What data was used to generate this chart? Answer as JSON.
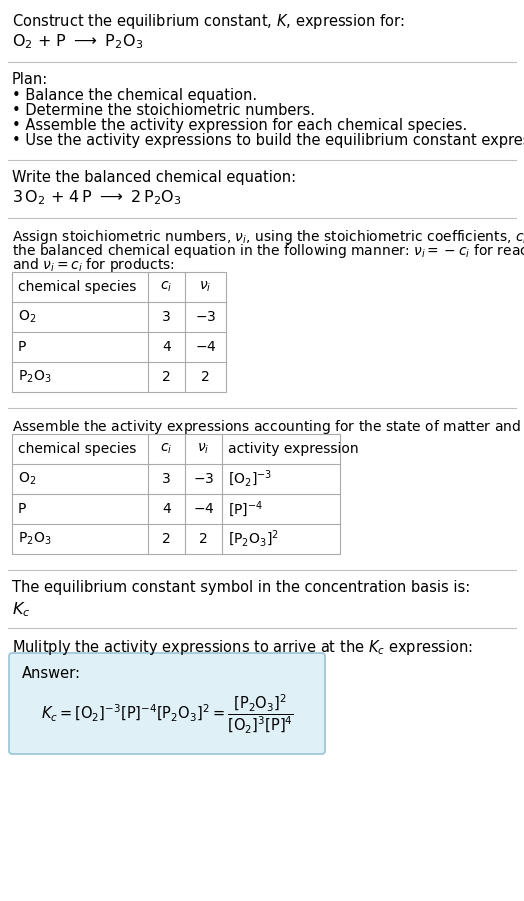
{
  "bg_color": "#ffffff",
  "title_line1": "Construct the equilibrium constant, $K$, expression for:",
  "title_line2_parts": [
    "O",
    "2",
    " + P ",
    " P",
    "2",
    "O",
    "3"
  ],
  "plan_header": "Plan:",
  "plan_items": [
    "• Balance the chemical equation.",
    "• Determine the stoichiometric numbers.",
    "• Assemble the activity expression for each chemical species.",
    "• Use the activity expressions to build the equilibrium constant expression."
  ],
  "balanced_header": "Write the balanced chemical equation:",
  "kc_symbol_intro": "The equilibrium constant symbol in the concentration basis is:",
  "kc_symbol": "$K_c$",
  "multiply_intro": "Mulitply the activity expressions to arrive at the $K_c$ expression:",
  "answer_label": "Answer:",
  "answer_box_color": "#dff0f7",
  "answer_box_border": "#99c4d8",
  "font_size": 10.5,
  "table_font_size": 10
}
